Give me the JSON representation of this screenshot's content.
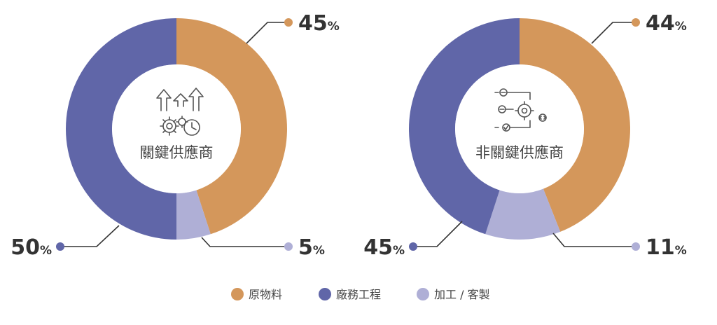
{
  "chart_data": [
    {
      "type": "pie",
      "title": "關鍵供應商",
      "icon": "gears-arrows-clock-icon",
      "slices": [
        {
          "name": "原物料",
          "value": 45,
          "label": "45"
        },
        {
          "name": "加工 / 客製",
          "value": 5,
          "label": "5"
        },
        {
          "name": "廠務工程",
          "value": 50,
          "label": "50"
        }
      ]
    },
    {
      "type": "pie",
      "title": "非關鍵供應商",
      "icon": "process-flow-gear-icon",
      "slices": [
        {
          "name": "原物料",
          "value": 44,
          "label": "44"
        },
        {
          "name": "加工 / 客製",
          "value": 11,
          "label": "11"
        },
        {
          "name": "廠務工程",
          "value": 45,
          "label": "45"
        }
      ]
    }
  ],
  "percent_sign": "%",
  "legend": [
    {
      "name": "原物料",
      "color": "#D4975B"
    },
    {
      "name": "廠務工程",
      "color": "#6066A8"
    },
    {
      "name": "加工 / 客製",
      "color": "#AFAFD6"
    }
  ]
}
